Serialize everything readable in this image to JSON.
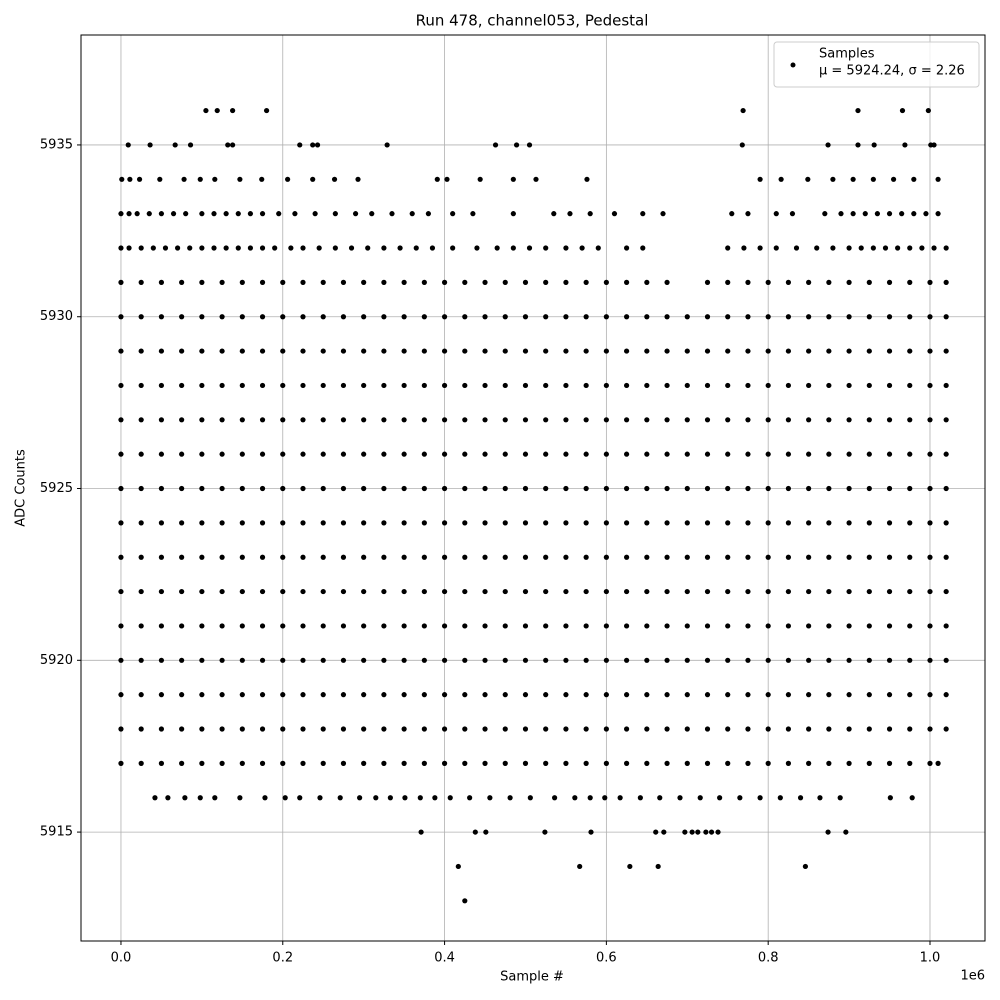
{
  "chart_data": {
    "type": "scatter",
    "title": "Run 478, channel053, Pedestal",
    "x_label": "Sample #",
    "y_label": "ADC Counts",
    "x_offset_label": "1e6",
    "xlim": [
      -49400,
      1068000
    ],
    "ylim": [
      5911.83,
      5938.2
    ],
    "xticks": [
      {
        "value": 0,
        "label": "0.0"
      },
      {
        "value": 200000,
        "label": "0.2"
      },
      {
        "value": 400000,
        "label": "0.4"
      },
      {
        "value": 600000,
        "label": "0.6"
      },
      {
        "value": 800000,
        "label": "0.8"
      },
      {
        "value": 1000000,
        "label": "1.0"
      }
    ],
    "yticks": [
      5915,
      5920,
      5925,
      5930,
      5935
    ],
    "grid": true,
    "legend": "upper right",
    "series": [
      {
        "name": "Samples",
        "stats": "μ = 5924.24, σ = 2.26",
        "color": "#000000",
        "levels": [
          5936,
          5935,
          5934,
          5933,
          5932,
          5931,
          5930,
          5929,
          5928,
          5927,
          5926,
          5925,
          5924,
          5923,
          5922,
          5921,
          5920,
          5919,
          5918,
          5917,
          5916,
          5915,
          5914,
          5913
        ],
        "x": [
          [
            105000,
            119000,
            138000,
            180000,
            769000,
            911000,
            966000,
            998000
          ],
          [
            9000,
            36000,
            67000,
            86000,
            132000,
            138000,
            221000,
            237000,
            243000,
            329000,
            463000,
            489000,
            505000,
            768000,
            874000,
            911000,
            931000,
            969000,
            1001000,
            1005000
          ],
          [
            1000,
            11000,
            23000,
            48000,
            78000,
            98000,
            116000,
            147000,
            174000,
            206000,
            237000,
            264000,
            293000,
            391000,
            403000,
            444000,
            485000,
            513000,
            576000,
            790000,
            816000,
            849000,
            880000,
            905000,
            930000,
            955000,
            980000,
            1010000
          ],
          [
            0,
            10000,
            20000,
            35000,
            50000,
            65000,
            80000,
            100000,
            115000,
            130000,
            145000,
            160000,
            175000,
            195000,
            215000,
            240000,
            265000,
            290000,
            310000,
            335000,
            360000,
            380000,
            410000,
            435000,
            485000,
            535000,
            555000,
            580000,
            610000,
            645000,
            670000,
            755000,
            775000,
            810000,
            830000,
            870000,
            890000,
            905000,
            920000,
            935000,
            950000,
            965000,
            980000,
            995000,
            1010000
          ],
          [
            0,
            10000,
            25000,
            40000,
            55000,
            70000,
            85000,
            100000,
            115000,
            130000,
            145000,
            160000,
            175000,
            190000,
            210000,
            225000,
            245000,
            265000,
            285000,
            305000,
            325000,
            345000,
            365000,
            385000,
            410000,
            440000,
            465000,
            485000,
            505000,
            525000,
            550000,
            570000,
            590000,
            625000,
            645000,
            750000,
            770000,
            790000,
            810000,
            835000,
            860000,
            880000,
            900000,
            915000,
            930000,
            945000,
            960000,
            975000,
            990000,
            1005000,
            1020000
          ],
          [
            0,
            25000,
            50000,
            75000,
            100000,
            125000,
            150000,
            175000,
            200000,
            225000,
            250000,
            275000,
            300000,
            325000,
            350000,
            375000,
            400000,
            425000,
            450000,
            475000,
            500000,
            525000,
            550000,
            575000,
            600000,
            625000,
            650000,
            675000,
            725000,
            750000,
            775000,
            800000,
            825000,
            850000,
            875000,
            900000,
            925000,
            950000,
            975000,
            1000000,
            1020000
          ],
          [
            0,
            25000,
            50000,
            75000,
            100000,
            125000,
            150000,
            175000,
            200000,
            225000,
            250000,
            275000,
            300000,
            325000,
            350000,
            375000,
            400000,
            425000,
            450000,
            475000,
            500000,
            525000,
            550000,
            575000,
            600000,
            625000,
            650000,
            675000,
            700000,
            725000,
            750000,
            775000,
            800000,
            825000,
            850000,
            875000,
            900000,
            925000,
            950000,
            975000,
            1000000,
            1020000
          ],
          [
            0,
            25000,
            50000,
            75000,
            100000,
            125000,
            150000,
            175000,
            200000,
            225000,
            250000,
            275000,
            300000,
            325000,
            350000,
            375000,
            400000,
            425000,
            450000,
            475000,
            500000,
            525000,
            550000,
            575000,
            600000,
            625000,
            650000,
            675000,
            700000,
            725000,
            750000,
            775000,
            800000,
            825000,
            850000,
            875000,
            900000,
            925000,
            950000,
            975000,
            1000000,
            1020000
          ],
          [
            0,
            25000,
            50000,
            75000,
            100000,
            125000,
            150000,
            175000,
            200000,
            225000,
            250000,
            275000,
            300000,
            325000,
            350000,
            375000,
            400000,
            425000,
            450000,
            475000,
            500000,
            525000,
            550000,
            575000,
            600000,
            625000,
            650000,
            675000,
            700000,
            725000,
            750000,
            775000,
            800000,
            825000,
            850000,
            875000,
            900000,
            925000,
            950000,
            975000,
            1000000,
            1020000
          ],
          [
            0,
            25000,
            50000,
            75000,
            100000,
            125000,
            150000,
            175000,
            200000,
            225000,
            250000,
            275000,
            300000,
            325000,
            350000,
            375000,
            400000,
            425000,
            450000,
            475000,
            500000,
            525000,
            550000,
            575000,
            600000,
            625000,
            650000,
            675000,
            700000,
            725000,
            750000,
            775000,
            800000,
            825000,
            850000,
            875000,
            900000,
            925000,
            950000,
            975000,
            1000000,
            1020000
          ],
          [
            0,
            25000,
            50000,
            75000,
            100000,
            125000,
            150000,
            175000,
            200000,
            225000,
            250000,
            275000,
            300000,
            325000,
            350000,
            375000,
            400000,
            425000,
            450000,
            475000,
            500000,
            525000,
            550000,
            575000,
            600000,
            625000,
            650000,
            675000,
            700000,
            725000,
            750000,
            775000,
            800000,
            825000,
            850000,
            875000,
            900000,
            925000,
            950000,
            975000,
            1000000,
            1020000
          ],
          [
            0,
            25000,
            50000,
            75000,
            100000,
            125000,
            150000,
            175000,
            200000,
            225000,
            250000,
            275000,
            300000,
            325000,
            350000,
            375000,
            400000,
            425000,
            450000,
            475000,
            500000,
            525000,
            550000,
            575000,
            600000,
            625000,
            650000,
            675000,
            700000,
            725000,
            750000,
            775000,
            800000,
            825000,
            850000,
            875000,
            900000,
            925000,
            950000,
            975000,
            1000000,
            1020000
          ],
          [
            0,
            25000,
            50000,
            75000,
            100000,
            125000,
            150000,
            175000,
            200000,
            225000,
            250000,
            275000,
            300000,
            325000,
            350000,
            375000,
            400000,
            425000,
            450000,
            475000,
            500000,
            525000,
            550000,
            575000,
            600000,
            625000,
            650000,
            675000,
            700000,
            725000,
            750000,
            775000,
            800000,
            825000,
            850000,
            875000,
            900000,
            925000,
            950000,
            975000,
            1000000,
            1020000
          ],
          [
            0,
            25000,
            50000,
            75000,
            100000,
            125000,
            150000,
            175000,
            200000,
            225000,
            250000,
            275000,
            300000,
            325000,
            350000,
            375000,
            400000,
            425000,
            450000,
            475000,
            500000,
            525000,
            550000,
            575000,
            600000,
            625000,
            650000,
            675000,
            700000,
            725000,
            750000,
            775000,
            800000,
            825000,
            850000,
            875000,
            900000,
            925000,
            950000,
            975000,
            1000000,
            1020000
          ],
          [
            0,
            25000,
            50000,
            75000,
            100000,
            125000,
            150000,
            175000,
            200000,
            225000,
            250000,
            275000,
            300000,
            325000,
            350000,
            375000,
            400000,
            425000,
            450000,
            475000,
            500000,
            525000,
            550000,
            575000,
            600000,
            625000,
            650000,
            675000,
            700000,
            725000,
            750000,
            775000,
            800000,
            825000,
            850000,
            875000,
            900000,
            925000,
            950000,
            975000,
            1000000,
            1020000
          ],
          [
            0,
            25000,
            50000,
            75000,
            100000,
            125000,
            150000,
            175000,
            200000,
            225000,
            250000,
            275000,
            300000,
            325000,
            350000,
            375000,
            400000,
            425000,
            450000,
            475000,
            500000,
            525000,
            550000,
            575000,
            600000,
            625000,
            650000,
            675000,
            700000,
            725000,
            750000,
            775000,
            800000,
            825000,
            850000,
            875000,
            900000,
            925000,
            950000,
            975000,
            1000000,
            1020000
          ],
          [
            0,
            25000,
            50000,
            75000,
            100000,
            125000,
            150000,
            175000,
            200000,
            225000,
            250000,
            275000,
            300000,
            325000,
            350000,
            375000,
            400000,
            425000,
            450000,
            475000,
            500000,
            525000,
            550000,
            575000,
            600000,
            625000,
            650000,
            675000,
            700000,
            725000,
            750000,
            775000,
            800000,
            825000,
            850000,
            875000,
            900000,
            925000,
            950000,
            975000,
            1000000,
            1020000
          ],
          [
            0,
            25000,
            50000,
            75000,
            100000,
            125000,
            150000,
            175000,
            200000,
            225000,
            250000,
            275000,
            300000,
            325000,
            350000,
            375000,
            400000,
            425000,
            450000,
            475000,
            500000,
            525000,
            550000,
            575000,
            600000,
            625000,
            650000,
            675000,
            700000,
            725000,
            750000,
            775000,
            800000,
            825000,
            850000,
            875000,
            900000,
            925000,
            950000,
            975000,
            1000000,
            1020000
          ],
          [
            0,
            25000,
            50000,
            75000,
            100000,
            125000,
            150000,
            175000,
            200000,
            225000,
            250000,
            275000,
            300000,
            325000,
            350000,
            375000,
            400000,
            425000,
            450000,
            475000,
            500000,
            525000,
            550000,
            575000,
            600000,
            625000,
            650000,
            675000,
            700000,
            725000,
            750000,
            775000,
            800000,
            825000,
            850000,
            875000,
            900000,
            925000,
            950000,
            975000,
            1000000,
            1020000
          ],
          [
            0,
            25000,
            50000,
            75000,
            100000,
            125000,
            150000,
            175000,
            200000,
            225000,
            250000,
            275000,
            300000,
            325000,
            350000,
            375000,
            400000,
            425000,
            450000,
            475000,
            500000,
            525000,
            550000,
            575000,
            600000,
            625000,
            650000,
            675000,
            700000,
            725000,
            750000,
            775000,
            800000,
            825000,
            850000,
            875000,
            900000,
            925000,
            950000,
            975000,
            1000000,
            1010000
          ],
          [
            42000,
            58000,
            79000,
            98000,
            116000,
            147000,
            178000,
            203000,
            221000,
            246000,
            271000,
            295000,
            315000,
            333000,
            351000,
            370000,
            388000,
            407000,
            431000,
            456000,
            481000,
            506000,
            536000,
            561000,
            580000,
            598000,
            617000,
            642000,
            666000,
            691000,
            716000,
            740000,
            765000,
            790000,
            815000,
            840000,
            864000,
            889000,
            951000,
            978000
          ],
          [
            371000,
            438000,
            451000,
            524000,
            581000,
            661000,
            671000,
            697000,
            706000,
            713000,
            723000,
            730000,
            738000,
            874000,
            896000
          ],
          [
            417000,
            567000,
            629000,
            664000,
            846000
          ],
          [
            425000
          ]
        ]
      }
    ]
  }
}
